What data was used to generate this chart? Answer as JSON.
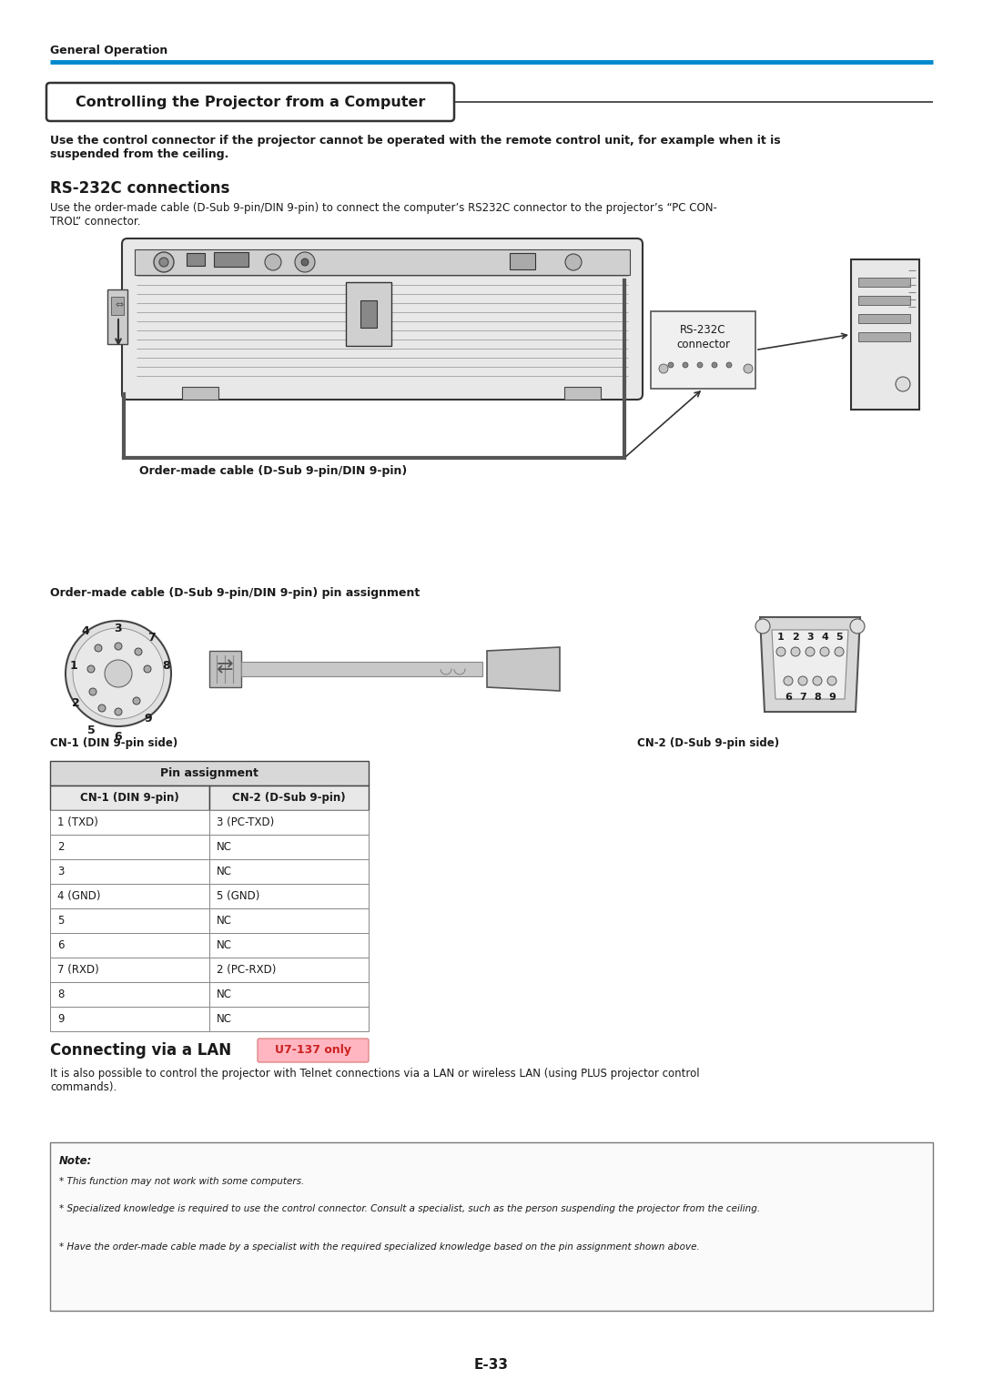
{
  "page_bg": "#ffffff",
  "header_text": "General Operation",
  "header_line_color": "#0088cc",
  "title_box_text": "Controlling the Projector from a Computer",
  "intro_bold": "Use the control connector if the projector cannot be operated with the remote control unit, for example when it is\nsuspended from the ceiling.",
  "rs232c_heading": "RS-232C connections",
  "rs232c_body": "Use the order-made cable (D-Sub 9-pin/DIN 9-pin) to connect the computer’s RS232C connector to the projector’s “PC CON-\nTROL” connector.",
  "cable_label": "Order-made cable (D-Sub 9-pin/DIN 9-pin)",
  "pin_heading": "Order-made cable (D-Sub 9-pin/DIN 9-pin) pin assignment",
  "cn1_label": "CN-1 (DIN 9-pin side)",
  "cn2_label": "CN-2 (D-Sub 9-pin side)",
  "table_title": "Pin assignment",
  "table_header": [
    "CN-1 (DIN 9-pin)",
    "CN-2 (D-Sub 9-pin)"
  ],
  "table_data": [
    [
      "1 (TXD)",
      "3 (PC-TXD)"
    ],
    [
      "2",
      "NC"
    ],
    [
      "3",
      "NC"
    ],
    [
      "4 (GND)",
      "5 (GND)"
    ],
    [
      "5",
      "NC"
    ],
    [
      "6",
      "NC"
    ],
    [
      "7 (RXD)",
      "2 (PC-RXD)"
    ],
    [
      "8",
      "NC"
    ],
    [
      "9",
      "NC"
    ]
  ],
  "lan_heading": "Connecting via a LAN",
  "lan_badge": "U7-137 only",
  "lan_badge_bg": "#ffb6c1",
  "lan_badge_border": "#dd8888",
  "lan_body": "It is also possible to control the projector with Telnet connections via a LAN or wireless LAN (using PLUS projector control\ncommands).",
  "note_title": "Note:",
  "note_items": [
    "This function may not work with some computers.",
    "Specialized knowledge is required to use the control connector. Consult a specialist, such as the person suspending the projector from the ceiling.",
    "Have the order-made cable made by a specialist with the required specialized knowledge based on the pin assignment shown above."
  ],
  "footer": "E-33",
  "tc": "#1a1a1a",
  "gray_light": "#cccccc",
  "gray_med": "#999999",
  "gray_dark": "#555555"
}
